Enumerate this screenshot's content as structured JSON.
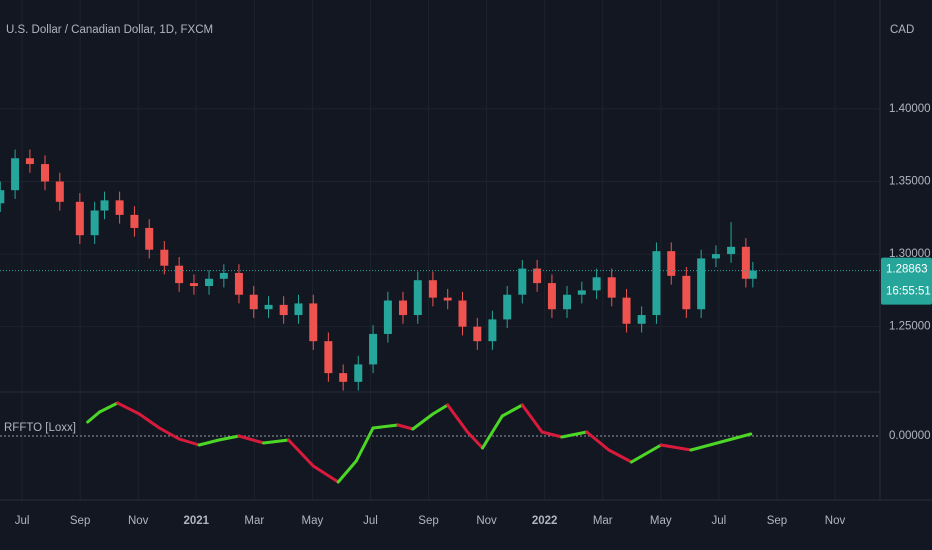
{
  "chart_data": [
    {
      "type": "candlestick",
      "title": "U.S. Dollar / Canadian Dollar, 1D, FXCM",
      "currency": "CAD",
      "x": [
        5.25,
        5.76,
        6.27,
        6.79,
        7.3,
        7.99,
        8.5,
        8.84,
        9.36,
        9.87,
        10.38,
        10.9,
        11.41,
        11.92,
        12.44,
        12.95,
        13.47,
        13.98,
        14.49,
        15.01,
        15.52,
        16.03,
        16.55,
        17.06,
        17.58,
        18.09,
        18.6,
        19.12,
        19.63,
        20.15,
        20.66,
        21.17,
        21.68,
        22.2,
        22.71,
        23.23,
        23.74,
        24.25,
        24.77,
        25.28,
        25.79,
        26.31,
        26.82,
        27.34,
        27.85,
        28.36,
        28.88,
        29.39,
        29.9,
        30.42,
        30.93,
        31.17
      ],
      "open": [
        1.335,
        1.344,
        1.366,
        1.362,
        1.35,
        1.336,
        1.313,
        1.33,
        1.337,
        1.327,
        1.318,
        1.303,
        1.292,
        1.28,
        1.278,
        1.283,
        1.287,
        1.272,
        1.262,
        1.265,
        1.258,
        1.266,
        1.24,
        1.218,
        1.212,
        1.224,
        1.245,
        1.268,
        1.258,
        1.282,
        1.27,
        1.268,
        1.25,
        1.24,
        1.255,
        1.272,
        1.29,
        1.28,
        1.262,
        1.272,
        1.275,
        1.284,
        1.27,
        1.252,
        1.258,
        1.302,
        1.285,
        1.262,
        1.297,
        1.3,
        1.305,
        1.283
      ],
      "high": [
        1.35,
        1.372,
        1.372,
        1.368,
        1.356,
        1.342,
        1.336,
        1.343,
        1.343,
        1.333,
        1.324,
        1.309,
        1.298,
        1.286,
        1.289,
        1.293,
        1.293,
        1.278,
        1.271,
        1.271,
        1.272,
        1.272,
        1.246,
        1.224,
        1.23,
        1.251,
        1.274,
        1.274,
        1.288,
        1.288,
        1.276,
        1.274,
        1.256,
        1.261,
        1.278,
        1.296,
        1.296,
        1.286,
        1.278,
        1.281,
        1.29,
        1.29,
        1.276,
        1.264,
        1.308,
        1.308,
        1.291,
        1.303,
        1.306,
        1.322,
        1.311,
        1.2946
      ],
      "low": [
        1.329,
        1.338,
        1.356,
        1.344,
        1.33,
        1.307,
        1.307,
        1.324,
        1.321,
        1.312,
        1.297,
        1.286,
        1.274,
        1.272,
        1.272,
        1.277,
        1.266,
        1.256,
        1.256,
        1.252,
        1.252,
        1.234,
        1.212,
        1.206,
        1.206,
        1.218,
        1.239,
        1.252,
        1.252,
        1.264,
        1.262,
        1.244,
        1.234,
        1.234,
        1.249,
        1.266,
        1.274,
        1.256,
        1.256,
        1.266,
        1.269,
        1.264,
        1.246,
        1.246,
        1.252,
        1.279,
        1.256,
        1.256,
        1.291,
        1.294,
        1.277,
        1.277
      ],
      "close": [
        1.344,
        1.366,
        1.362,
        1.35,
        1.336,
        1.313,
        1.33,
        1.337,
        1.327,
        1.318,
        1.303,
        1.292,
        1.28,
        1.278,
        1.283,
        1.287,
        1.272,
        1.262,
        1.265,
        1.258,
        1.266,
        1.24,
        1.218,
        1.212,
        1.224,
        1.245,
        1.268,
        1.258,
        1.282,
        1.27,
        1.268,
        1.25,
        1.24,
        1.255,
        1.272,
        1.29,
        1.28,
        1.262,
        1.272,
        1.275,
        1.284,
        1.27,
        1.252,
        1.258,
        1.302,
        1.285,
        1.262,
        1.297,
        1.3,
        1.305,
        1.283,
        1.2886
      ],
      "up_color": "#26a69a",
      "down_color": "#ef5350",
      "xlim": [
        5.24,
        35.55
      ],
      "xticks": [
        {
          "value": 6,
          "label": "Jul"
        },
        {
          "value": 8,
          "label": "Sep"
        },
        {
          "value": 10,
          "label": "Nov"
        },
        {
          "value": 12,
          "label": "2021"
        },
        {
          "value": 14,
          "label": "Mar"
        },
        {
          "value": 16,
          "label": "May"
        },
        {
          "value": 18,
          "label": "Jul"
        },
        {
          "value": 20,
          "label": "Sep"
        },
        {
          "value": 22,
          "label": "Nov"
        },
        {
          "value": 24,
          "label": "2022"
        },
        {
          "value": 26,
          "label": "Mar"
        },
        {
          "value": 28,
          "label": "May"
        },
        {
          "value": 30,
          "label": "Jul"
        },
        {
          "value": 32,
          "label": "Sep"
        },
        {
          "value": 34,
          "label": "Nov"
        }
      ],
      "ylim": [
        1.205,
        1.475
      ],
      "yticks": [
        {
          "value": 1.25,
          "label": "1.25000"
        },
        {
          "value": 1.3,
          "label": "1.30000"
        },
        {
          "value": 1.35,
          "label": "1.35000"
        },
        {
          "value": 1.4,
          "label": "1.40000"
        }
      ],
      "last_price": {
        "value": 1.28863,
        "label": "1.28863"
      },
      "countdown": "16:55:51",
      "grid": true
    },
    {
      "type": "line",
      "title": "RFFTO [Loxx]",
      "x": [
        8.26,
        8.67,
        9.29,
        10.04,
        10.73,
        11.41,
        12.1,
        12.78,
        13.47,
        14.32,
        15.18,
        16.03,
        16.89,
        17.51,
        18.09,
        18.95,
        19.46,
        20.15,
        20.66,
        21.34,
        21.86,
        22.54,
        23.23,
        23.91,
        24.59,
        25.45,
        26.21,
        26.99,
        28.01,
        29.04,
        30.07,
        31.1
      ],
      "values": [
        0.28,
        0.48,
        0.66,
        0.44,
        0.16,
        -0.06,
        -0.18,
        -0.08,
        0.0,
        -0.14,
        -0.08,
        -0.6,
        -0.92,
        -0.5,
        0.16,
        0.22,
        0.14,
        0.44,
        0.62,
        0.08,
        -0.24,
        0.4,
        0.62,
        0.08,
        -0.02,
        0.08,
        -0.28,
        -0.52,
        -0.18,
        -0.28,
        -0.12,
        0.04
      ],
      "up_color": "#4cd626",
      "down_color": "#d81b3c",
      "xlim": [
        5.24,
        35.55
      ],
      "ylim": [
        -1.12,
        0.88
      ],
      "yticks": [
        {
          "value": 0,
          "label": "0.00000"
        }
      ]
    }
  ]
}
